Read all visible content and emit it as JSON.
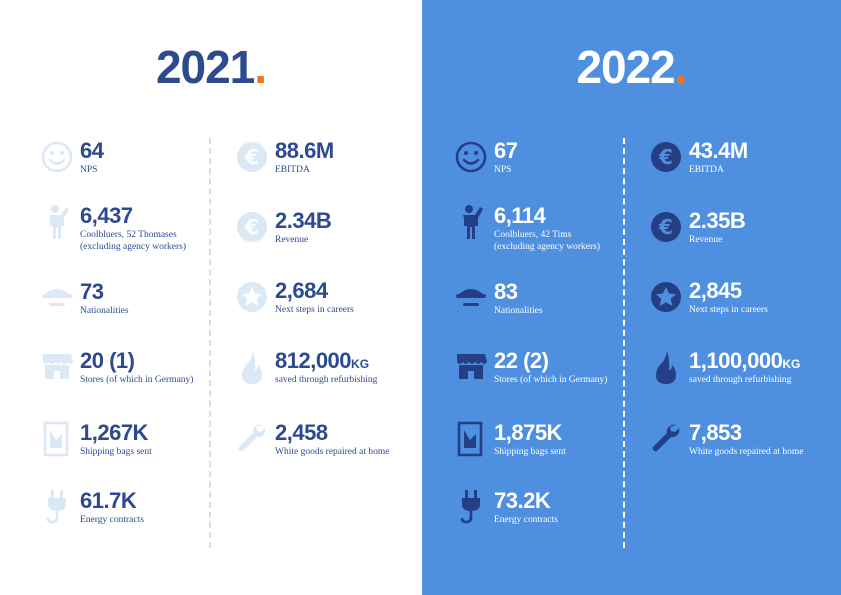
{
  "y2021": {
    "year": "2021",
    "dot": ".",
    "stats": {
      "nps": {
        "value": "64",
        "label": "NPS",
        "icon": "smiley-icon"
      },
      "ebitda": {
        "value": "88.6M",
        "label": "EBITDA",
        "icon": "euro-icon"
      },
      "people": {
        "value": "6,437",
        "label1": "Coolbluers, 52 Thomases",
        "label2": "(excluding agency workers)",
        "icon": "person-waving-icon"
      },
      "revenue": {
        "value": "2.34B",
        "label": "Revenue",
        "icon": "euro-icon"
      },
      "nationalities": {
        "value": "73",
        "label": "Nationalities",
        "icon": "cap-icon"
      },
      "careers": {
        "value": "2,684",
        "label": "Next steps in careers",
        "icon": "star-icon"
      },
      "stores": {
        "value": "20 (1)",
        "label": "Stores (of which in Germany)",
        "icon": "store-icon"
      },
      "refurb": {
        "value": "812,000",
        "unit": "KG",
        "label": "saved through refurbishing",
        "icon": "flame-icon"
      },
      "bags": {
        "value": "1,267K",
        "label": "Shipping bags sent",
        "icon": "shipping-bag-icon"
      },
      "repairs": {
        "value": "2,458",
        "label": "White goods repaired at home",
        "icon": "wrench-icon"
      },
      "energy": {
        "value": "61.7K",
        "label": "Energy contracts",
        "icon": "plug-icon"
      }
    }
  },
  "y2022": {
    "year": "2022",
    "dot": ".",
    "stats": {
      "nps": {
        "value": "67",
        "label": "NPS",
        "icon": "smiley-icon"
      },
      "ebitda": {
        "value": "43.4M",
        "label": "EBITDA",
        "icon": "euro-icon"
      },
      "people": {
        "value": "6,114",
        "label1": "Coolbluers, 42 Tims",
        "label2": "(excluding agency workers)",
        "icon": "person-waving-icon"
      },
      "revenue": {
        "value": "2.35B",
        "label": "Revenue",
        "icon": "euro-icon"
      },
      "nationalities": {
        "value": "83",
        "label": "Nationalities",
        "icon": "cap-icon"
      },
      "careers": {
        "value": "2,845",
        "label": "Next steps in careers",
        "icon": "star-icon"
      },
      "stores": {
        "value": "22 (2)",
        "label": "Stores (of which in Germany)",
        "icon": "store-icon"
      },
      "refurb": {
        "value": "1,100,000",
        "unit": "KG",
        "label": "saved through refurbishing",
        "icon": "flame-icon"
      },
      "bags": {
        "value": "1,875K",
        "label": "Shipping bags sent",
        "icon": "shipping-bag-icon"
      },
      "repairs": {
        "value": "7,853",
        "label": "White goods repaired at home",
        "icon": "wrench-icon"
      },
      "energy": {
        "value": "73.2K",
        "label": "Energy contracts",
        "icon": "plug-icon"
      }
    }
  }
}
